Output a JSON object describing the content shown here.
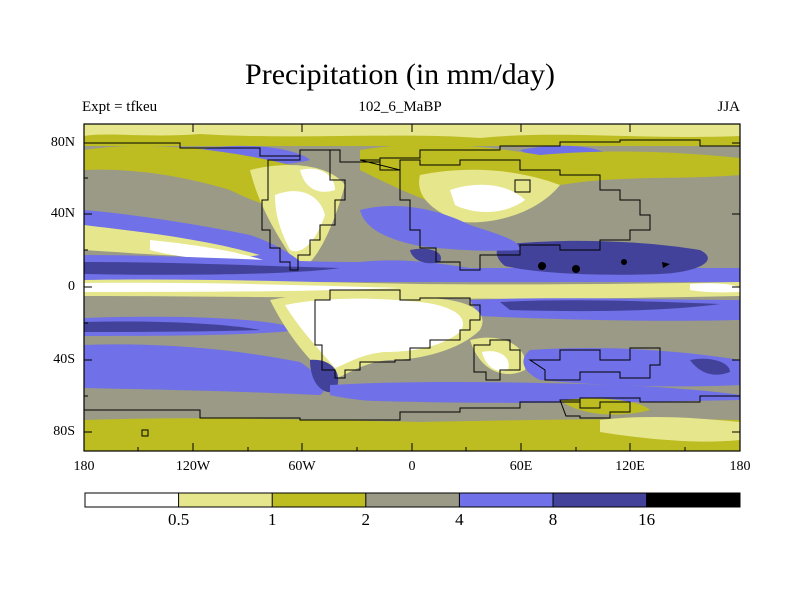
{
  "title": "Precipitation (in mm/day)",
  "subtitle_left": "Expt = tfkeu",
  "subtitle_center": "102_6_MaBP",
  "subtitle_right": "JJA",
  "lat_labels": [
    "80N",
    "40N",
    "0",
    "40S",
    "80S"
  ],
  "lon_labels": [
    "180",
    "120W",
    "60W",
    "0",
    "60E",
    "120E",
    "180"
  ],
  "colorbar": {
    "labels": [
      "0.5",
      "1",
      "2",
      "4",
      "8",
      "16"
    ],
    "colors": [
      "#ffffff",
      "#e6e68c",
      "#bdbd22",
      "#9a9a86",
      "#7070e8",
      "#42429a",
      "#000000"
    ]
  }
}
